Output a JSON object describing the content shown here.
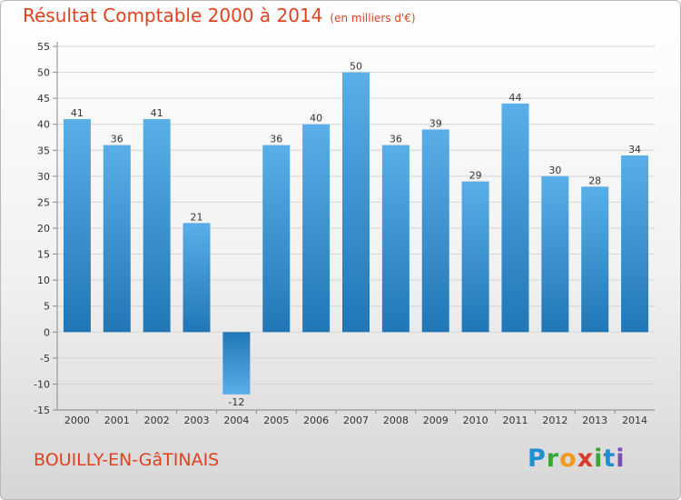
{
  "header": {
    "title": "Résultat Comptable 2000 à 2014",
    "unit": "(en milliers d'€)"
  },
  "commune": "BOUILLY-EN-GâTINAIS",
  "brand": {
    "letters": [
      "P",
      "r",
      "o",
      "x",
      "i",
      "t",
      "i"
    ],
    "colors": [
      "#1f8fd0",
      "#3aa63a",
      "#f29a1d",
      "#d83a2b",
      "#3aa63a",
      "#1f8fd0",
      "#7b4fb0"
    ]
  },
  "chart_data": {
    "type": "bar",
    "categories": [
      "2000",
      "2001",
      "2002",
      "2003",
      "2004",
      "2005",
      "2006",
      "2007",
      "2008",
      "2009",
      "2010",
      "2011",
      "2012",
      "2013",
      "2014"
    ],
    "values": [
      41,
      36,
      41,
      21,
      -12,
      36,
      40,
      50,
      36,
      39,
      29,
      44,
      30,
      28,
      34
    ],
    "data_labels": [
      "41",
      "36",
      "41",
      "21",
      "-12",
      "36",
      "40",
      "50",
      "36",
      "39",
      "29",
      "44",
      "30",
      "28",
      "34"
    ],
    "ylim": [
      -15,
      55
    ],
    "yticks": [
      "55",
      "50",
      "45",
      "40",
      "35",
      "30",
      "25",
      "20",
      "15",
      "10",
      "5",
      "0",
      "-5",
      "-10",
      "-15"
    ],
    "grid": true,
    "bar_color_top": "#5aafe8",
    "bar_color_bottom": "#2176b5"
  }
}
